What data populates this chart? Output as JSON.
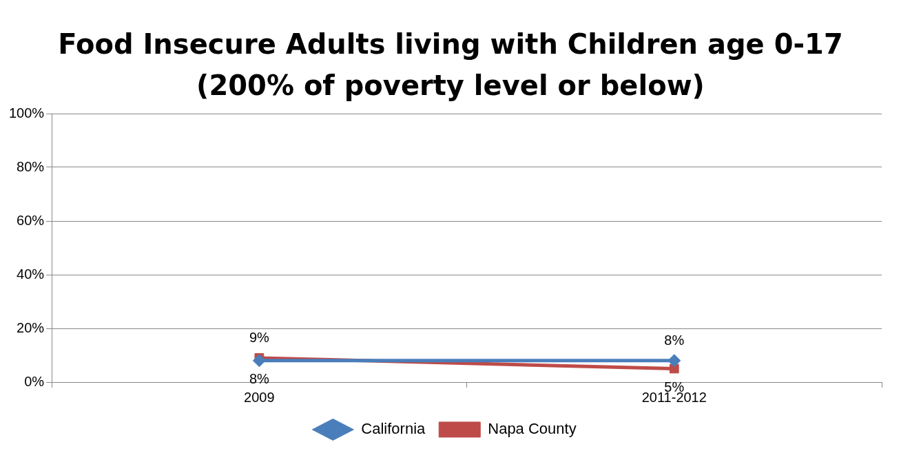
{
  "chart_data": {
    "type": "line",
    "title": "Food Insecure Adults living with Children age 0-17\n(200% of poverty level or below)",
    "categories": [
      "2009",
      "2011-2012"
    ],
    "series": [
      {
        "name": "California",
        "color": "#4a7ebb",
        "marker": "diamond",
        "values": [
          8,
          8
        ],
        "value_labels": [
          "8%",
          "8%"
        ]
      },
      {
        "name": "Napa County",
        "color": "#be4b48",
        "marker": "square",
        "values": [
          9,
          5
        ],
        "value_labels": [
          "9%",
          "5%"
        ]
      }
    ],
    "ylim": [
      0,
      100
    ],
    "yticks": [
      {
        "value": 0,
        "label": "0%"
      },
      {
        "value": 20,
        "label": "20%"
      },
      {
        "value": 40,
        "label": "40%"
      },
      {
        "value": 60,
        "label": "60%"
      },
      {
        "value": 80,
        "label": "80%"
      },
      {
        "value": 100,
        "label": "100%"
      }
    ],
    "grid": "y",
    "legend": "bottom",
    "line_style": "solid"
  }
}
